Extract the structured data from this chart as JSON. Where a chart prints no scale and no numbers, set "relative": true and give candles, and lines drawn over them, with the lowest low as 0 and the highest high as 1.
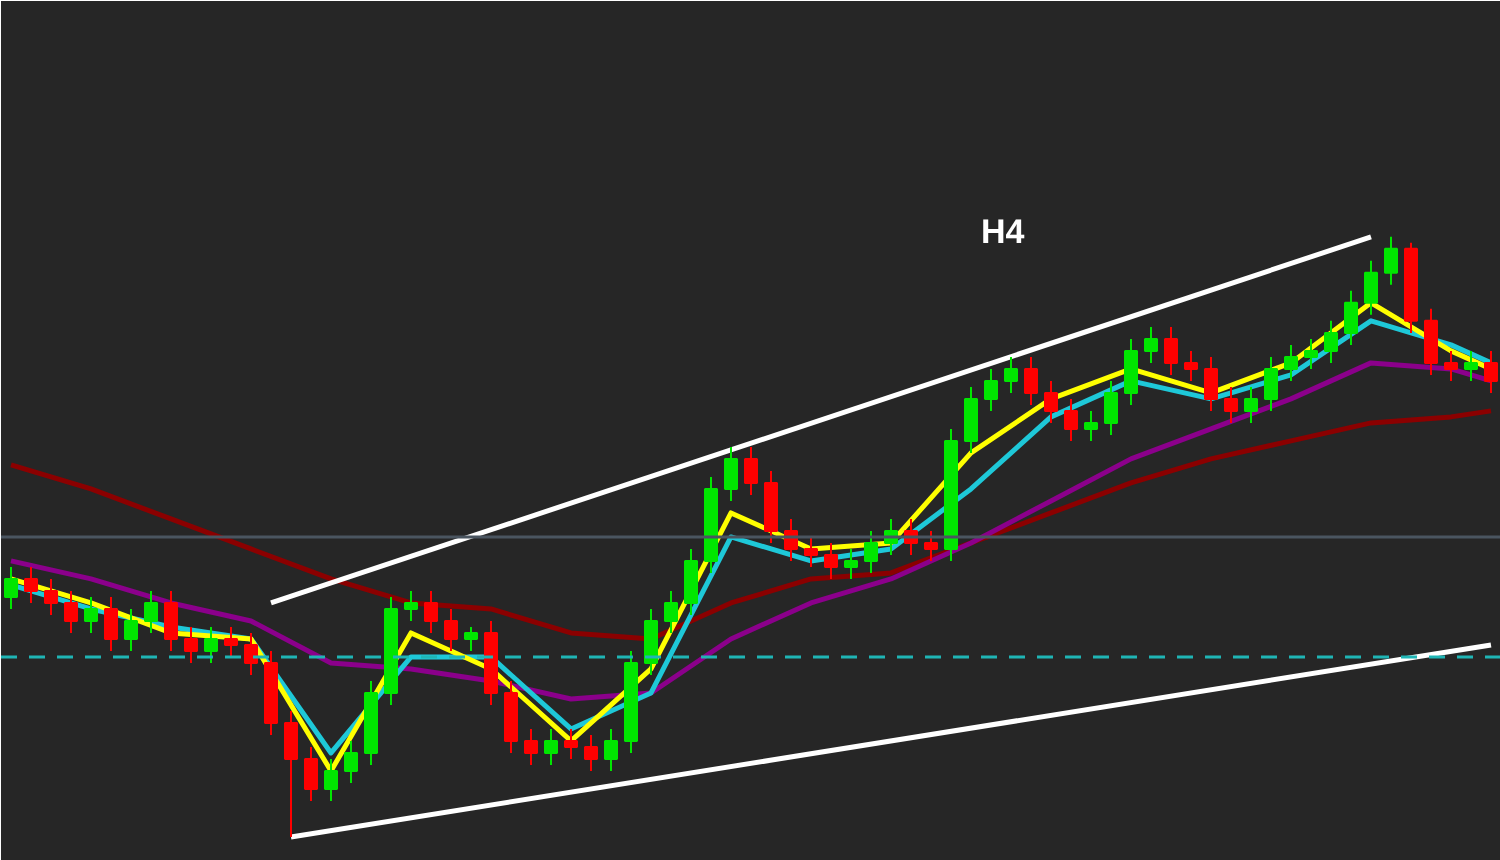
{
  "chart_data": {
    "type": "candlestick",
    "title": "H4",
    "relative": true,
    "grid": false,
    "tick_labels": false,
    "categories": [
      null,
      null,
      null,
      null,
      null,
      null,
      null,
      null,
      null,
      null,
      null,
      null,
      null,
      null,
      null,
      null,
      null,
      null,
      null,
      null,
      null,
      null,
      null,
      null,
      null,
      null,
      null,
      null,
      null,
      null,
      null,
      null,
      null,
      null,
      null,
      null,
      null,
      null,
      null,
      null,
      null,
      null,
      null,
      null,
      null,
      null,
      null,
      null,
      null,
      null,
      null,
      null,
      null,
      null,
      null,
      null,
      null,
      null,
      null,
      null,
      null,
      null,
      null,
      null,
      null,
      null,
      null,
      null,
      null,
      null,
      null,
      null,
      null,
      null,
      null
    ],
    "ohlc": [
      [
        0.4,
        0.45,
        0.38,
        0.43
      ],
      [
        0.43,
        0.45,
        0.39,
        0.41
      ],
      [
        0.41,
        0.43,
        0.37,
        0.39
      ],
      [
        0.39,
        0.41,
        0.34,
        0.36
      ],
      [
        0.36,
        0.4,
        0.34,
        0.38
      ],
      [
        0.38,
        0.4,
        0.31,
        0.33
      ],
      [
        0.33,
        0.38,
        0.31,
        0.36
      ],
      [
        0.36,
        0.41,
        0.34,
        0.39
      ],
      [
        0.39,
        0.41,
        0.31,
        0.33
      ],
      [
        0.33,
        0.35,
        0.29,
        0.31
      ],
      [
        0.31,
        0.35,
        0.29,
        0.33
      ],
      [
        0.33,
        0.35,
        0.3,
        0.32
      ],
      [
        0.32,
        0.34,
        0.27,
        0.29
      ],
      [
        0.29,
        0.31,
        0.17,
        0.19
      ],
      [
        0.19,
        0.21,
        0,
        0.13
      ],
      [
        0.13,
        0.15,
        0.06,
        0.08
      ],
      [
        0.08,
        0.13,
        0.06,
        0.11
      ],
      [
        0.11,
        0.16,
        0.09,
        0.14
      ],
      [
        0.14,
        0.26,
        0.12,
        0.24
      ],
      [
        0.24,
        0.4,
        0.22,
        0.38
      ],
      [
        0.38,
        0.41,
        0.36,
        0.39
      ],
      [
        0.39,
        0.41,
        0.34,
        0.36
      ],
      [
        0.36,
        0.38,
        0.31,
        0.33
      ],
      [
        0.33,
        0.35,
        0.31,
        0.34
      ],
      [
        0.34,
        0.36,
        0.22,
        0.24
      ],
      [
        0.24,
        0.26,
        0.14,
        0.16
      ],
      [
        0.16,
        0.18,
        0.12,
        0.14
      ],
      [
        0.14,
        0.18,
        0.12,
        0.16
      ],
      [
        0.16,
        0.18,
        0.13,
        0.15
      ],
      [
        0.15,
        0.17,
        0.11,
        0.13
      ],
      [
        0.13,
        0.18,
        0.11,
        0.16
      ],
      [
        0.16,
        0.31,
        0.14,
        0.29
      ],
      [
        0.29,
        0.38,
        0.27,
        0.36
      ],
      [
        0.36,
        0.41,
        0.34,
        0.39
      ],
      [
        0.39,
        0.48,
        0.37,
        0.46
      ],
      [
        0.46,
        0.6,
        0.44,
        0.58
      ],
      [
        0.58,
        0.65,
        0.56,
        0.63
      ],
      [
        0.63,
        0.65,
        0.57,
        0.59
      ],
      [
        0.59,
        0.61,
        0.49,
        0.51
      ],
      [
        0.51,
        0.53,
        0.46,
        0.48
      ],
      [
        0.48,
        0.5,
        0.45,
        0.47
      ],
      [
        0.47,
        0.49,
        0.43,
        0.45
      ],
      [
        0.45,
        0.48,
        0.43,
        0.46
      ],
      [
        0.46,
        0.51,
        0.44,
        0.49
      ],
      [
        0.49,
        0.53,
        0.47,
        0.51
      ],
      [
        0.51,
        0.53,
        0.47,
        0.49
      ],
      [
        0.49,
        0.51,
        0.46,
        0.48
      ],
      [
        0.48,
        0.68,
        0.46,
        0.66
      ],
      [
        0.66,
        0.75,
        0.64,
        0.73
      ],
      [
        0.73,
        0.78,
        0.71,
        0.76
      ],
      [
        0.76,
        0.8,
        0.74,
        0.78
      ],
      [
        0.78,
        0.8,
        0.72,
        0.74
      ],
      [
        0.74,
        0.76,
        0.69,
        0.71
      ],
      [
        0.71,
        0.73,
        0.66,
        0.68
      ],
      [
        0.68,
        0.71,
        0.66,
        0.69
      ],
      [
        0.69,
        0.76,
        0.67,
        0.74
      ],
      [
        0.74,
        0.83,
        0.72,
        0.81
      ],
      [
        0.81,
        0.85,
        0.79,
        0.83
      ],
      [
        0.83,
        0.85,
        0.77,
        0.79
      ],
      [
        0.79,
        0.81,
        0.76,
        0.78
      ],
      [
        0.78,
        0.8,
        0.71,
        0.73
      ],
      [
        0.73,
        0.75,
        0.69,
        0.71
      ],
      [
        0.71,
        0.75,
        0.69,
        0.73
      ],
      [
        0.73,
        0.8,
        0.71,
        0.78
      ],
      [
        0.78,
        0.82,
        0.76,
        0.8
      ],
      [
        0.8,
        0.83,
        0.78,
        0.81
      ],
      [
        0.81,
        0.86,
        0.79,
        0.84
      ],
      [
        0.84,
        0.91,
        0.82,
        0.89
      ],
      [
        0.89,
        0.96,
        0.87,
        0.94
      ],
      [
        0.94,
        1,
        0.92,
        0.98
      ],
      [
        0.98,
        0.99,
        0.84,
        0.86
      ],
      [
        0.86,
        0.88,
        0.77,
        0.79
      ],
      [
        0.79,
        0.81,
        0.76,
        0.78
      ],
      [
        0.78,
        0.81,
        0.76,
        0.79
      ],
      [
        0.79,
        0.81,
        0.74,
        0.76
      ]
    ],
    "colors": [
      "#00e600",
      "#ff0000",
      "#ff0000",
      "#ff0000",
      "#00e600",
      "#ff0000",
      "#00e600",
      "#00e600",
      "#ff0000",
      "#ff0000",
      "#00e600",
      "#ff0000",
      "#ff0000",
      "#ff0000",
      "#ff0000",
      "#ff0000",
      "#00e600",
      "#00e600",
      "#00e600",
      "#00e600",
      "#00e600",
      "#ff0000",
      "#ff0000",
      "#00e600",
      "#ff0000",
      "#ff0000",
      "#ff0000",
      "#00e600",
      "#ff0000",
      "#ff0000",
      "#00e600",
      "#00e600",
      "#00e600",
      "#00e600",
      "#00e600",
      "#00e600",
      "#00e600",
      "#ff0000",
      "#ff0000",
      "#ff0000",
      "#ff0000",
      "#ff0000",
      "#00e600",
      "#00e600",
      "#00e600",
      "#ff0000",
      "#ff0000",
      "#00e600",
      "#00e600",
      "#00e600",
      "#00e600",
      "#ff0000",
      "#ff0000",
      "#ff0000",
      "#00e600",
      "#00e600",
      "#00e600",
      "#00e600",
      "#ff0000",
      "#ff0000",
      "#ff0000",
      "#ff0000",
      "#00e600",
      "#00e600",
      "#00e600",
      "#00e600",
      "#00e600",
      "#00e600",
      "#00e600",
      "#00e600",
      "#ff0000",
      "#ff0000",
      "#ff0000",
      "#00e600",
      "#ff0000"
    ],
    "ref_lines": [
      {
        "axis": "y",
        "value": 0.5,
        "color": "#4a5560",
        "line_style": "solid"
      },
      {
        "axis": "y",
        "value": 0.3,
        "color": "#1fb5b5",
        "line_style": "dashed"
      }
    ],
    "series": [
      {
        "type": "line",
        "color": "#8b0000",
        "values": [
          0.62,
          null,
          null,
          null,
          0.58,
          null,
          null,
          null,
          0.53,
          null,
          null,
          null,
          0.48,
          null,
          null,
          null,
          0.43,
          null,
          null,
          null,
          0.39,
          null,
          null,
          null,
          0.38,
          null,
          null,
          null,
          0.34,
          null,
          null,
          null,
          0.33,
          null,
          null,
          null,
          0.39,
          null,
          null,
          null,
          0.43,
          null,
          null,
          null,
          0.44,
          null,
          null,
          null,
          0.49,
          null,
          null,
          null,
          0.54,
          null,
          null,
          null,
          0.59,
          null,
          null,
          null,
          0.63,
          null,
          null,
          null,
          0.66,
          null,
          null,
          null,
          0.69,
          null,
          null,
          null,
          0.7,
          null,
          0.71
        ]
      },
      {
        "type": "line",
        "color": "#8b008b",
        "values": [
          0.46,
          null,
          null,
          null,
          0.43,
          null,
          null,
          null,
          0.39,
          null,
          null,
          null,
          0.36,
          null,
          null,
          null,
          0.29,
          null,
          null,
          null,
          0.28,
          null,
          null,
          null,
          0.26,
          null,
          null,
          null,
          0.23,
          null,
          null,
          null,
          0.24,
          null,
          null,
          null,
          0.33,
          null,
          null,
          null,
          0.39,
          null,
          null,
          null,
          0.43,
          null,
          null,
          null,
          0.49,
          null,
          null,
          null,
          0.56,
          null,
          null,
          null,
          0.63,
          null,
          null,
          null,
          0.68,
          null,
          null,
          null,
          0.73,
          null,
          null,
          null,
          0.79,
          null,
          null,
          null,
          0.78,
          null,
          0.76
        ]
      },
      {
        "type": "line",
        "color": "#1ec8d8",
        "values": [
          0.42,
          null,
          null,
          null,
          0.38,
          null,
          null,
          null,
          0.35,
          null,
          null,
          null,
          0.33,
          null,
          null,
          null,
          0.14,
          null,
          null,
          null,
          0.3,
          null,
          null,
          null,
          0.3,
          null,
          null,
          null,
          0.18,
          null,
          null,
          null,
          0.24,
          null,
          null,
          null,
          0.5,
          null,
          null,
          null,
          0.46,
          null,
          null,
          null,
          0.48,
          null,
          null,
          null,
          0.58,
          null,
          null,
          null,
          0.7,
          null,
          null,
          null,
          0.76,
          null,
          null,
          null,
          0.73,
          null,
          null,
          null,
          0.77,
          null,
          null,
          null,
          0.86,
          null,
          null,
          null,
          0.82,
          null,
          0.79
        ]
      },
      {
        "type": "line",
        "color": "#ffff00",
        "values": [
          0.43,
          null,
          null,
          null,
          0.39,
          null,
          null,
          null,
          0.34,
          null,
          null,
          null,
          0.33,
          null,
          null,
          null,
          0.11,
          null,
          null,
          null,
          0.34,
          null,
          null,
          null,
          0.28,
          null,
          null,
          null,
          0.16,
          null,
          null,
          null,
          0.28,
          null,
          null,
          null,
          0.54,
          null,
          null,
          null,
          0.48,
          null,
          null,
          null,
          0.49,
          null,
          null,
          null,
          0.64,
          null,
          null,
          null,
          0.73,
          null,
          null,
          null,
          0.78,
          null,
          null,
          null,
          0.74,
          null,
          null,
          null,
          0.79,
          null,
          null,
          null,
          0.89,
          null,
          null,
          null,
          0.81,
          null,
          0.78
        ]
      },
      {
        "type": "line",
        "color": "#ffffff",
        "values": [
          null,
          null,
          null,
          null,
          null,
          null,
          null,
          null,
          null,
          null,
          null,
          null,
          null,
          0.39,
          null,
          null,
          null,
          null,
          null,
          null,
          null,
          null,
          null,
          null,
          null,
          null,
          null,
          null,
          null,
          null,
          null,
          null,
          null,
          null,
          null,
          null,
          null,
          null,
          null,
          null,
          null,
          null,
          null,
          null,
          null,
          null,
          null,
          null,
          null,
          null,
          null,
          null,
          null,
          null,
          null,
          null,
          null,
          null,
          null,
          null,
          null,
          null,
          null,
          null,
          null,
          null,
          null,
          null,
          1,
          null,
          null,
          null,
          null,
          null,
          null
        ]
      },
      {
        "type": "line",
        "color": "#ffffff",
        "values": [
          null,
          null,
          null,
          null,
          null,
          null,
          null,
          null,
          null,
          null,
          null,
          null,
          null,
          null,
          0,
          null,
          null,
          null,
          null,
          null,
          null,
          null,
          null,
          null,
          null,
          null,
          null,
          null,
          null,
          null,
          null,
          null,
          null,
          null,
          null,
          null,
          null,
          null,
          null,
          null,
          null,
          null,
          null,
          null,
          null,
          null,
          null,
          null,
          null,
          null,
          null,
          null,
          null,
          null,
          null,
          null,
          null,
          null,
          null,
          null,
          null,
          null,
          null,
          null,
          null,
          null,
          null,
          null,
          null,
          null,
          null,
          null,
          null,
          null,
          0.32
        ]
      }
    ]
  }
}
